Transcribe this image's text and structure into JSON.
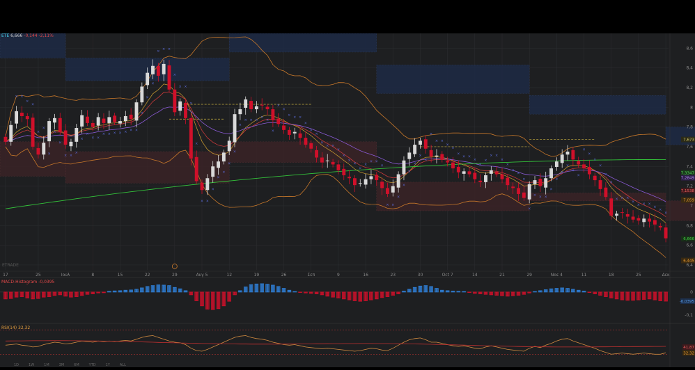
{
  "window": {
    "symbol": "ETE",
    "last": "6,666",
    "change": "-0,144",
    "change_pct": "-2,11%"
  },
  "watermark": "ETRADE",
  "macd_label": {
    "name": "MACD-Histogram",
    "value": "-0,0395"
  },
  "rsi_label": {
    "name": "RSI(14)",
    "value": "32,32"
  },
  "toolbar_text": [
    "1D",
    "1W",
    "1M",
    "3M",
    "6M",
    "YTD",
    "1Y",
    "ALL"
  ],
  "colors": {
    "up": "#d9d9d9",
    "down": "#d0102a",
    "macd_pos": "#2f7fd6",
    "macd_neg": "#d0102a",
    "ema_green": "#33c23a",
    "bollinger": "#c8782a",
    "ma_purple": "#8a5ad6",
    "ma_red": "#c83a3a",
    "psar": "#5a6ad6",
    "zone_blue": "#1d2a45",
    "zone_red": "#3a2326"
  },
  "chart_data": {
    "type": "candlestick",
    "x_ticks": [
      {
        "i": 0,
        "label": "17"
      },
      {
        "i": 6,
        "label": "25"
      },
      {
        "i": 11,
        "label": "Ιουλ"
      },
      {
        "i": 16,
        "label": "8"
      },
      {
        "i": 21,
        "label": "15"
      },
      {
        "i": 26,
        "label": "22"
      },
      {
        "i": 31,
        "label": "29"
      },
      {
        "i": 36,
        "label": "Αυγ 5"
      },
      {
        "i": 41,
        "label": "12"
      },
      {
        "i": 46,
        "label": "19"
      },
      {
        "i": 51,
        "label": "26"
      },
      {
        "i": 56,
        "label": "Σεπ"
      },
      {
        "i": 61,
        "label": "9"
      },
      {
        "i": 66,
        "label": "16"
      },
      {
        "i": 71,
        "label": "23"
      },
      {
        "i": 76,
        "label": "30"
      },
      {
        "i": 81,
        "label": "Oct 7"
      },
      {
        "i": 86,
        "label": "14"
      },
      {
        "i": 91,
        "label": "21"
      },
      {
        "i": 96,
        "label": "29"
      },
      {
        "i": 101,
        "label": "Νοε 4"
      },
      {
        "i": 106,
        "label": "11"
      },
      {
        "i": 111,
        "label": "18"
      },
      {
        "i": 116,
        "label": "25"
      },
      {
        "i": 121,
        "label": "Δεκ"
      }
    ],
    "y_ticks": [
      "8,6",
      "8,4",
      "8,2",
      "8",
      "7,8",
      "7,6",
      "7,4",
      "7,2",
      "7",
      "6,8",
      "6,6",
      "6,4"
    ],
    "y_range": [
      6.35,
      8.75
    ],
    "price_badges": [
      {
        "value": 7.673,
        "label": "7,673",
        "bg": "#2b2a18",
        "fg": "#d9d06a"
      },
      {
        "value": 7.3347,
        "label": "7,3347",
        "bg": "#1a3a1c",
        "fg": "#55d85a"
      },
      {
        "value": 7.2849,
        "label": "7,2849",
        "bg": "#2c1f46",
        "fg": "#b38cf0"
      },
      {
        "value": 7.1538,
        "label": "7,1538",
        "bg": "#3e1a1d",
        "fg": "#f06060"
      },
      {
        "value": 7.059,
        "label": "7,059",
        "bg": "#3a2a12",
        "fg": "#f0a030"
      },
      {
        "value": 6.666,
        "label": "6,666",
        "bg": "#183018",
        "fg": "#42d542"
      },
      {
        "value": 6.445,
        "label": "6,445",
        "bg": "#3a2a12",
        "fg": "#f0a030"
      }
    ],
    "macd_ticks": [
      {
        "value": 0,
        "label": "0"
      },
      {
        "value": -0.0395,
        "label": "-0,0395"
      },
      {
        "value": -0.1,
        "label": "-0,1"
      }
    ],
    "macd_range": [
      -0.13,
      0.06
    ],
    "rsi_ticks": [
      {
        "value": 41.87,
        "label": "41,87"
      },
      {
        "value": 32.32,
        "label": "32,32"
      }
    ],
    "rsi_range": [
      20,
      80
    ],
    "closes": [
      7.65,
      7.82,
      7.96,
      7.91,
      7.88,
      7.6,
      7.52,
      7.64,
      7.86,
      7.89,
      7.75,
      7.62,
      7.65,
      7.79,
      7.92,
      7.84,
      7.8,
      7.9,
      7.84,
      7.9,
      7.85,
      7.86,
      7.91,
      7.88,
      8.05,
      8.21,
      8.35,
      8.42,
      8.32,
      8.44,
      8.18,
      7.95,
      8.06,
      7.89,
      7.48,
      7.25,
      7.16,
      7.28,
      7.4,
      7.45,
      7.54,
      7.66,
      7.93,
      7.98,
      8.08,
      7.98,
      8.01,
      8.02,
      7.98,
      7.87,
      7.83,
      7.77,
      7.72,
      7.75,
      7.69,
      7.62,
      7.58,
      7.49,
      7.44,
      7.46,
      7.42,
      7.36,
      7.31,
      7.28,
      7.21,
      7.23,
      7.27,
      7.3,
      7.26,
      7.18,
      7.12,
      7.2,
      7.32,
      7.46,
      7.54,
      7.62,
      7.66,
      7.58,
      7.5,
      7.51,
      7.47,
      7.44,
      7.38,
      7.34,
      7.35,
      7.32,
      7.27,
      7.24,
      7.31,
      7.36,
      7.32,
      7.27,
      7.21,
      7.18,
      7.12,
      7.08,
      7.22,
      7.26,
      7.2,
      7.28,
      7.38,
      7.45,
      7.52,
      7.55,
      7.47,
      7.42,
      7.38,
      7.32,
      7.26,
      7.17,
      7.09,
      6.9,
      6.92,
      6.93,
      6.89,
      6.86,
      6.85,
      6.87,
      6.84,
      6.81,
      6.78,
      6.67
    ],
    "macd_hist": [
      -0.03,
      -0.028,
      -0.022,
      -0.02,
      -0.026,
      -0.03,
      -0.028,
      -0.022,
      -0.02,
      -0.015,
      -0.012,
      -0.018,
      -0.022,
      -0.02,
      -0.015,
      -0.01,
      -0.008,
      -0.004,
      -0.003,
      0.003,
      0.005,
      0.006,
      0.008,
      0.009,
      0.012,
      0.018,
      0.024,
      0.028,
      0.031,
      0.03,
      0.028,
      0.02,
      0.014,
      0.006,
      -0.012,
      -0.038,
      -0.06,
      -0.074,
      -0.076,
      -0.072,
      -0.06,
      -0.04,
      -0.012,
      0.006,
      0.022,
      0.032,
      0.035,
      0.036,
      0.034,
      0.03,
      0.024,
      0.016,
      0.008,
      0.002,
      -0.002,
      -0.004,
      -0.006,
      -0.008,
      -0.012,
      -0.018,
      -0.022,
      -0.026,
      -0.03,
      -0.034,
      -0.038,
      -0.04,
      -0.038,
      -0.034,
      -0.03,
      -0.024,
      -0.02,
      -0.014,
      -0.008,
      0.004,
      0.012,
      0.02,
      0.026,
      0.028,
      0.024,
      0.016,
      0.008,
      0.006,
      0.004,
      0.003,
      0.002,
      -0.002,
      -0.006,
      -0.008,
      -0.01,
      -0.012,
      -0.014,
      -0.016,
      -0.018,
      -0.016,
      -0.014,
      -0.01,
      -0.004,
      0.002,
      0.006,
      0.01,
      0.014,
      0.016,
      0.018,
      0.016,
      0.012,
      0.008,
      0.004,
      -0.002,
      -0.008,
      -0.014,
      -0.02,
      -0.026,
      -0.03,
      -0.034,
      -0.036,
      -0.036,
      -0.034,
      -0.032,
      -0.03,
      -0.034,
      -0.038,
      -0.0395
    ],
    "rsi": [
      45,
      46,
      47,
      45,
      44,
      42,
      43,
      46,
      48,
      50,
      49,
      47,
      48,
      50,
      52,
      51,
      50,
      52,
      51,
      52,
      51,
      52,
      53,
      52,
      55,
      58,
      60,
      61,
      58,
      55,
      52,
      50,
      49,
      46,
      40,
      36,
      35,
      38,
      42,
      46,
      50,
      54,
      58,
      60,
      61,
      58,
      56,
      55,
      53,
      50,
      48,
      46,
      45,
      46,
      44,
      42,
      41,
      40,
      39,
      40,
      39,
      38,
      37,
      36,
      35,
      36,
      38,
      40,
      39,
      37,
      36,
      40,
      45,
      50,
      54,
      56,
      57,
      54,
      50,
      50,
      48,
      46,
      44,
      43,
      44,
      42,
      40,
      39,
      42,
      44,
      42,
      40,
      38,
      37,
      36,
      35,
      40,
      43,
      41,
      45,
      48,
      52,
      55,
      56,
      52,
      49,
      46,
      43,
      40,
      36,
      33,
      30,
      31,
      32,
      31,
      30,
      31,
      32,
      31,
      30,
      30,
      32.32
    ],
    "rsi_signal_start": 52,
    "rsi_signal_end": 41.87
  }
}
